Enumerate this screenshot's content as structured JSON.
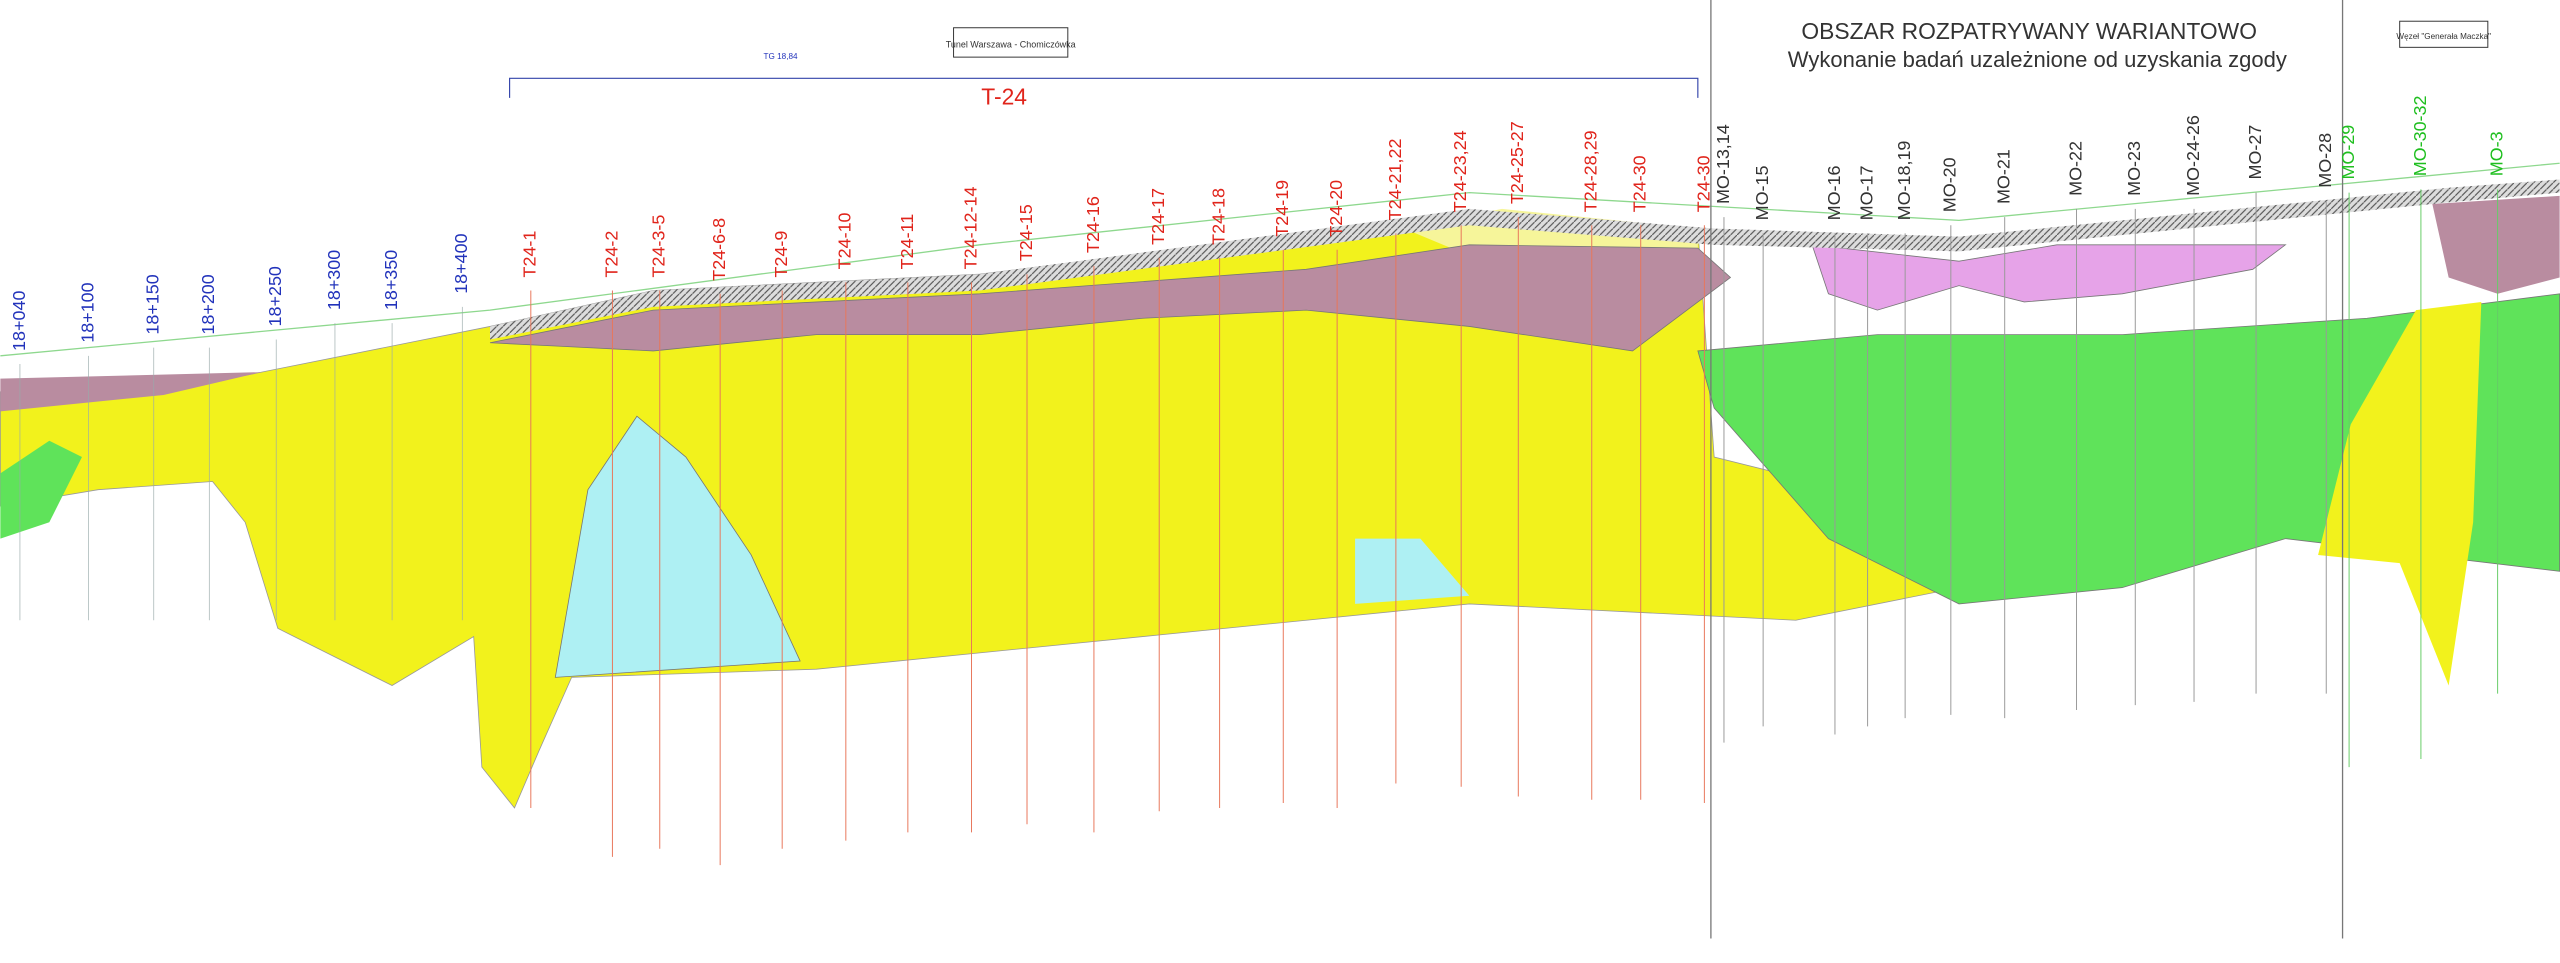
{
  "header": {
    "title": "OBSZAR ROZPATRYWANY WARIANTOWO",
    "subtitle": "Wykonanie badań uzależnione od uzyskania zgody"
  },
  "section": {
    "label": "T-24",
    "tunnel": "Tunel Warszawa - Chomiczówka",
    "junction": "Węzeł \"Generała Maczka\"",
    "marker": "TG 18,84"
  },
  "chainages": [
    "18+040",
    "18+100",
    "18+150",
    "18+200",
    "18+250",
    "18+300",
    "18+350",
    "18+400"
  ],
  "boreholes_t24": [
    "T24-1",
    "T24-2",
    "T24-3-5",
    "T24-6-8",
    "T24-9",
    "T24-10",
    "T24-11",
    "T24-12-14",
    "T24-15",
    "T24-16",
    "T24-17",
    "T24-18",
    "T24-19",
    "T24-20",
    "T24-21,22",
    "T24-23,24",
    "T24-25-27",
    "T24-28,29",
    "T24-30",
    "T24-30"
  ],
  "boreholes_mo": [
    "MO-13,14",
    "MO-15",
    "MO-16",
    "MO-17",
    "MO-18,19",
    "MO-20",
    "MO-21",
    "MO-22",
    "MO-23",
    "MO-24-26",
    "MO-27",
    "MO-28"
  ],
  "boreholes_mo_alt": [
    "MO-29",
    "MO-30-32",
    "MO-3"
  ]
}
